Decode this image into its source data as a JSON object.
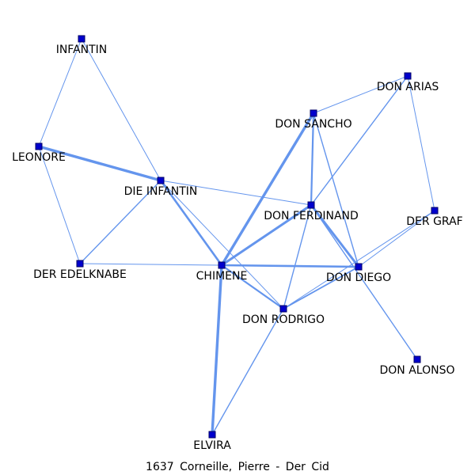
{
  "caption": "1637 Corneille, Pierre - Der Cid",
  "colors": {
    "edge": "#6495ed",
    "node": "#0000cd",
    "text": "#000000",
    "background": "#ffffff"
  },
  "nodes": [
    {
      "id": "infantin",
      "label": "INFANTIN"
    },
    {
      "id": "don-arias",
      "label": "DON ARIAS"
    },
    {
      "id": "don-sancho",
      "label": "DON SANCHO"
    },
    {
      "id": "leonore",
      "label": "LEONORE"
    },
    {
      "id": "die-infantin",
      "label": "DIE INFANTIN"
    },
    {
      "id": "don-ferdinand",
      "label": "DON FERDINAND"
    },
    {
      "id": "der-graf",
      "label": "DER GRAF"
    },
    {
      "id": "der-edelknabe",
      "label": "DER EDELKNABE"
    },
    {
      "id": "chimene",
      "label": "CHIMENE"
    },
    {
      "id": "don-diego",
      "label": "DON DIEGO"
    },
    {
      "id": "don-rodrigo",
      "label": "DON RODRIGO"
    },
    {
      "id": "don-alonso",
      "label": "DON ALONSO"
    },
    {
      "id": "elvira",
      "label": "ELVIRA"
    }
  ],
  "edges": [
    {
      "source": "infantin",
      "target": "leonore",
      "weight": 1
    },
    {
      "source": "infantin",
      "target": "die-infantin",
      "weight": 1
    },
    {
      "source": "leonore",
      "target": "die-infantin",
      "weight": 4
    },
    {
      "source": "leonore",
      "target": "der-edelknabe",
      "weight": 1
    },
    {
      "source": "die-infantin",
      "target": "der-edelknabe",
      "weight": 1.5
    },
    {
      "source": "die-infantin",
      "target": "chimene",
      "weight": 3
    },
    {
      "source": "die-infantin",
      "target": "don-ferdinand",
      "weight": 1
    },
    {
      "source": "die-infantin",
      "target": "don-rodrigo",
      "weight": 1
    },
    {
      "source": "der-edelknabe",
      "target": "chimene",
      "weight": 1
    },
    {
      "source": "don-arias",
      "target": "don-sancho",
      "weight": 1
    },
    {
      "source": "don-arias",
      "target": "der-graf",
      "weight": 1
    },
    {
      "source": "don-arias",
      "target": "don-ferdinand",
      "weight": 1.5
    },
    {
      "source": "don-sancho",
      "target": "chimene",
      "weight": 4
    },
    {
      "source": "don-sancho",
      "target": "don-ferdinand",
      "weight": 2.5
    },
    {
      "source": "don-sancho",
      "target": "don-diego",
      "weight": 1.5
    },
    {
      "source": "don-ferdinand",
      "target": "chimene",
      "weight": 3.5
    },
    {
      "source": "don-ferdinand",
      "target": "don-diego",
      "weight": 3.5
    },
    {
      "source": "don-ferdinand",
      "target": "don-rodrigo",
      "weight": 1.5
    },
    {
      "source": "don-ferdinand",
      "target": "don-alonso",
      "weight": 1.5
    },
    {
      "source": "der-graf",
      "target": "don-diego",
      "weight": 1
    },
    {
      "source": "der-graf",
      "target": "don-rodrigo",
      "weight": 1
    },
    {
      "source": "chimene",
      "target": "don-diego",
      "weight": 3
    },
    {
      "source": "chimene",
      "target": "don-rodrigo",
      "weight": 2.5
    },
    {
      "source": "chimene",
      "target": "elvira",
      "weight": 4
    },
    {
      "source": "don-diego",
      "target": "don-rodrigo",
      "weight": 2
    },
    {
      "source": "don-rodrigo",
      "target": "elvira",
      "weight": 1.5
    }
  ]
}
